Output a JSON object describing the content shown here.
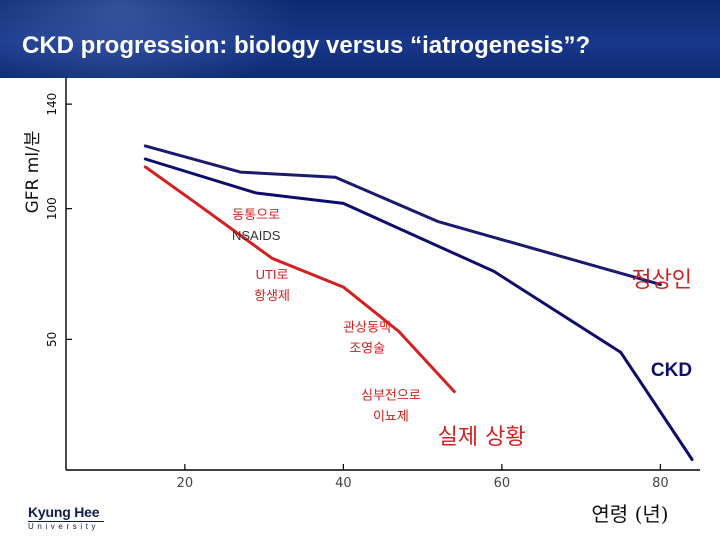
{
  "header": {
    "title": "CKD progression: biology versus “iatrogenesis”?"
  },
  "logo": {
    "line1": "Kyung Hee",
    "line2": "University"
  },
  "colors": {
    "header_bg": "#18378a",
    "normal_line": "#1a1a6e",
    "ckd_line": "#0d0d6b",
    "iatrogenic_line": "#d42020",
    "annotation_red": "#d42020",
    "ckd_label": "#0d0d6b"
  },
  "chart_data": {
    "type": "line",
    "xlabel": "연령 (년)",
    "ylabel": "GFR ml/분",
    "x_ticks": [
      "20",
      "40",
      "60",
      "80"
    ],
    "y_ticks": [
      "50",
      "100",
      "140"
    ],
    "xlim": [
      5,
      85
    ],
    "ylim": [
      0,
      150
    ],
    "grid": false,
    "series": [
      {
        "name": "정상인",
        "color": "#1a1a6e",
        "x": [
          15,
          27,
          39,
          52,
          80
        ],
        "y": [
          124,
          114,
          112,
          95,
          71
        ]
      },
      {
        "name": "CKD",
        "color": "#0d0d6b",
        "x": [
          15,
          29,
          40,
          59,
          75,
          84
        ],
        "y": [
          119,
          106,
          102,
          76,
          45,
          4
        ]
      },
      {
        "color": "#d42020",
        "x": [
          15,
          21,
          31,
          40,
          47,
          54
        ],
        "y": [
          116,
          103,
          81,
          70,
          53,
          30
        ]
      }
    ],
    "annotations": [
      {
        "text": "동통으로",
        "x": 29,
        "y": 96,
        "color": "#d42020"
      },
      {
        "text": "NSAIDS",
        "x": 29,
        "y": 88,
        "color": "#333333"
      },
      {
        "text": "UTI로",
        "x": 31,
        "y": 73,
        "color": "#d42020"
      },
      {
        "text": "항생제",
        "x": 31,
        "y": 65,
        "color": "#d42020"
      },
      {
        "text": "관상동맥",
        "x": 43,
        "y": 53,
        "color": "#d42020"
      },
      {
        "text": "조영술",
        "x": 43,
        "y": 45,
        "color": "#d42020"
      },
      {
        "text": "심부전으로",
        "x": 46,
        "y": 27,
        "color": "#d42020"
      },
      {
        "text": "이뇨제",
        "x": 46,
        "y": 19,
        "color": "#d42020"
      },
      {
        "text": "정상인",
        "x": 84,
        "y": 70,
        "color": "#d42020",
        "large": true
      },
      {
        "text": "CKD",
        "x": 84,
        "y": 36,
        "color": "#0d0d6b",
        "large": true
      },
      {
        "text": "실제 상황",
        "x": 63,
        "y": 10,
        "color": "#d42020",
        "large": true
      }
    ]
  }
}
